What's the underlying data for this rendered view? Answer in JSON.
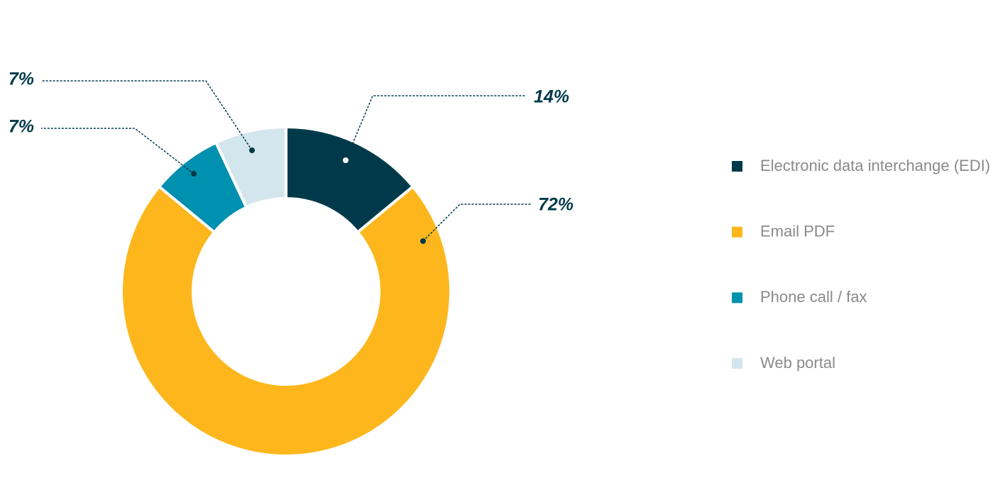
{
  "chart_data": {
    "type": "pie",
    "categories": [
      "Electronic data interchange (EDI)",
      "Email PDF",
      "Phone call / fax",
      "Web portal"
    ],
    "values": [
      14,
      72,
      7,
      7
    ],
    "value_labels": [
      "14%",
      "72%",
      "7%",
      "7%"
    ],
    "colors": [
      "#003a4a",
      "#fdb71d",
      "#0090b0",
      "#d4e6ed"
    ],
    "legend": "right"
  }
}
